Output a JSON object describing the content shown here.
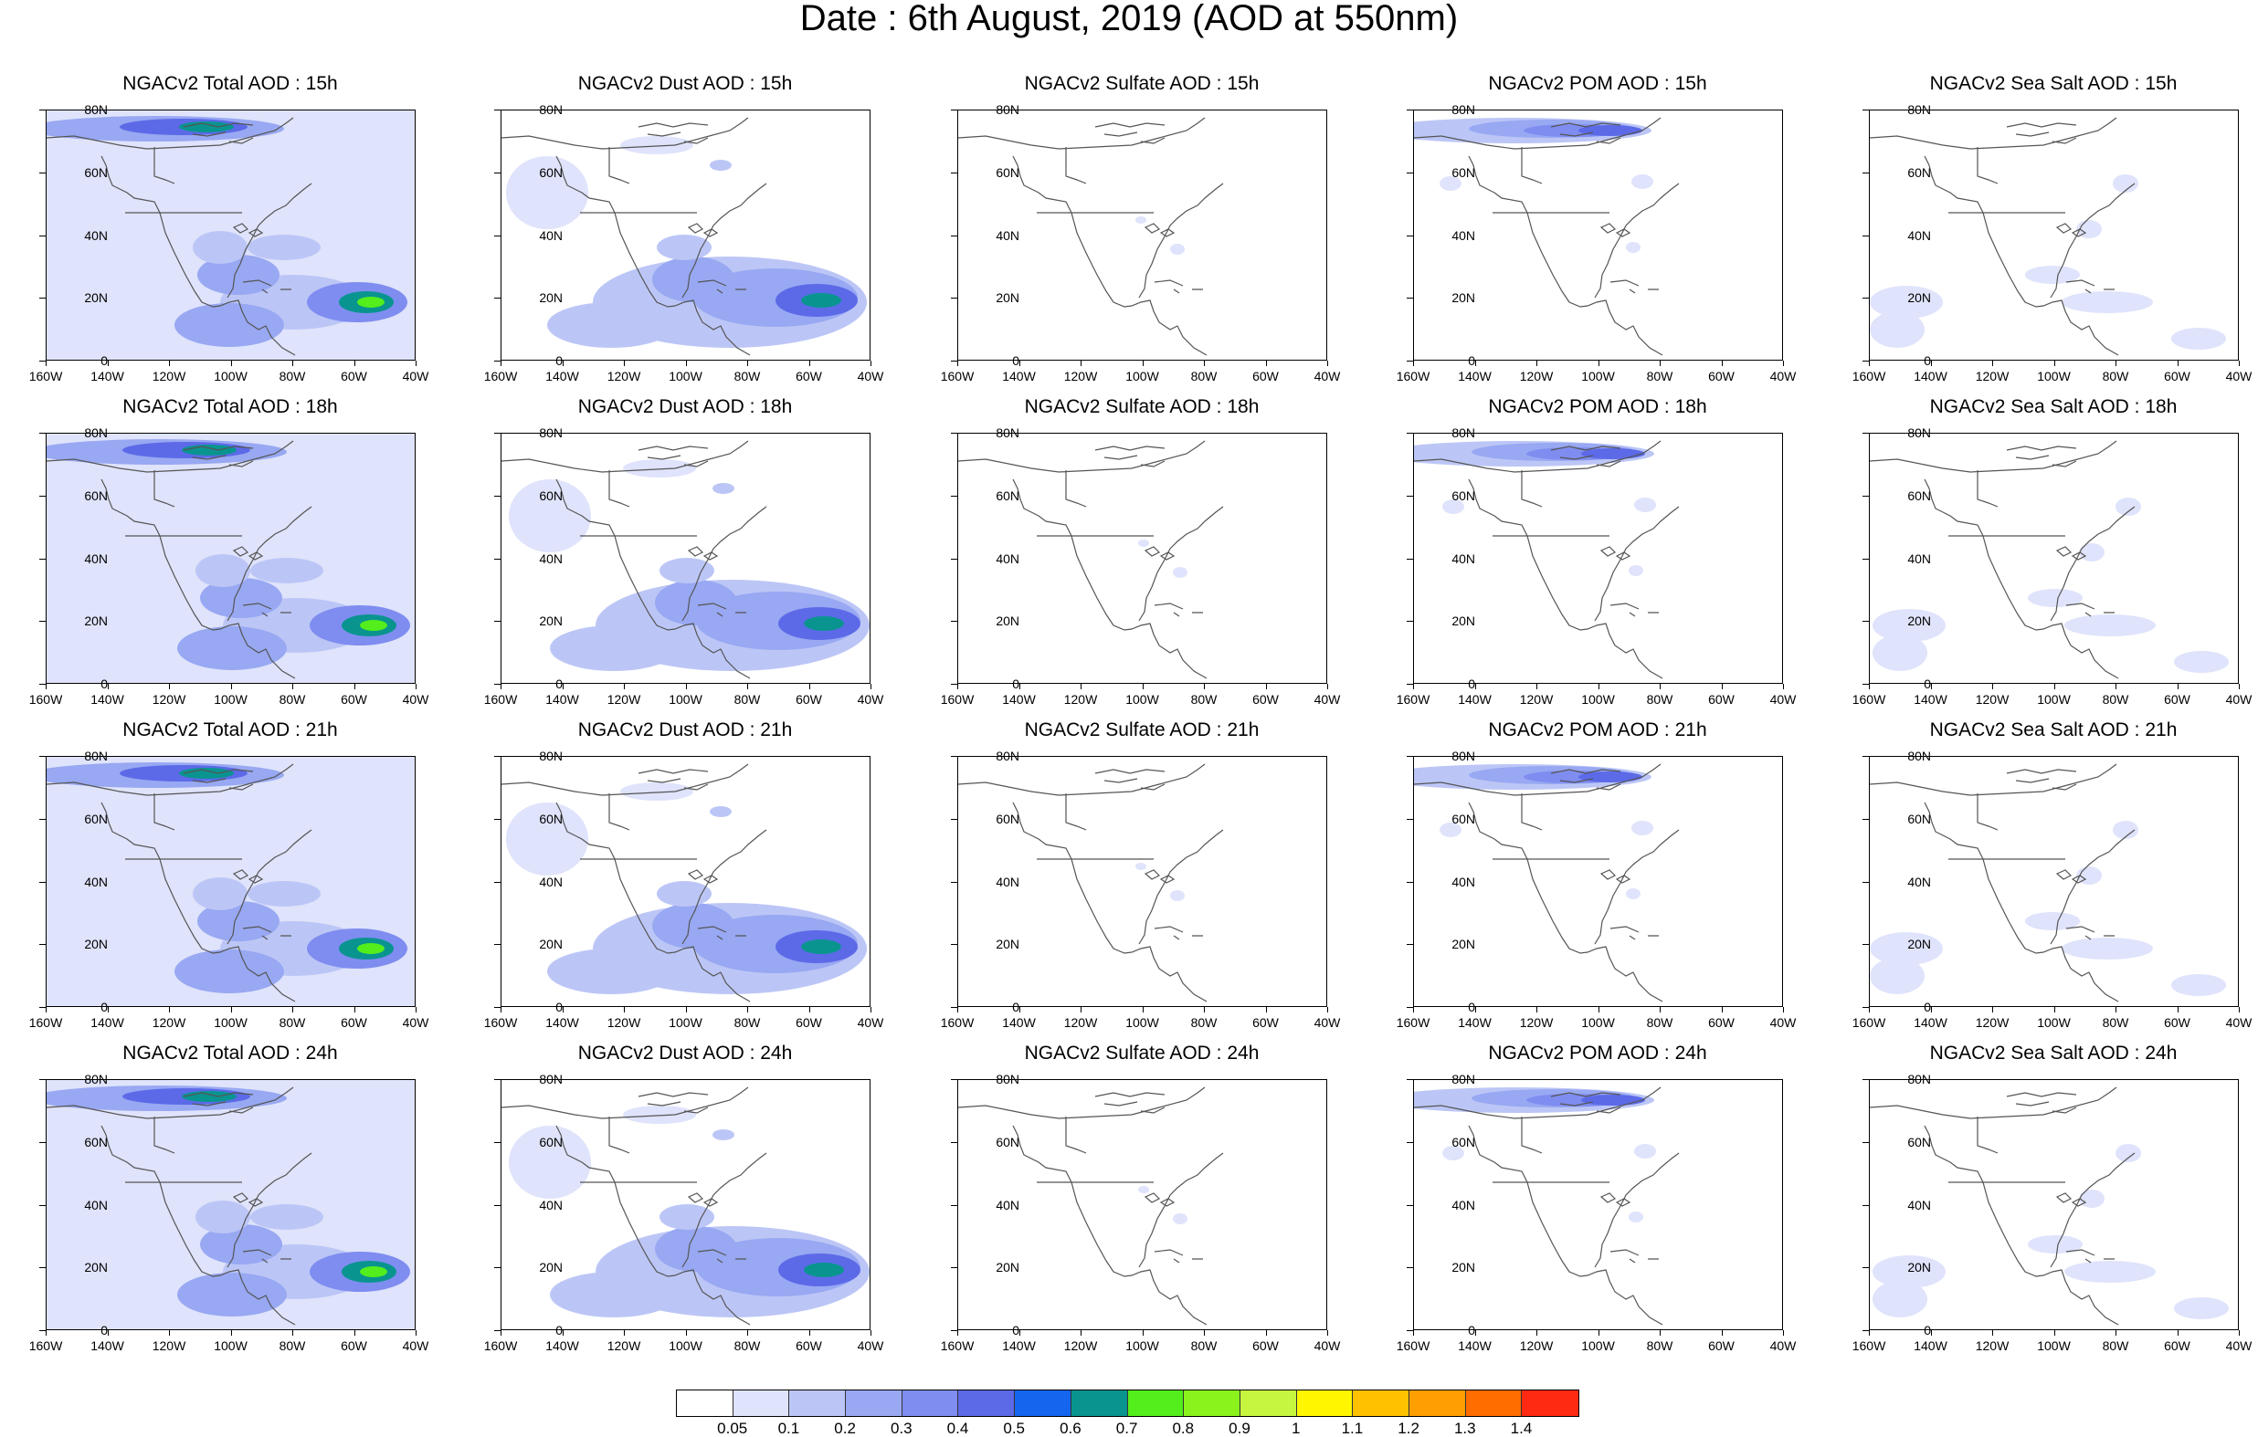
{
  "title": "Date : 6th August, 2019 (AOD at 550nm)",
  "axes": {
    "y_ticks": [
      "80N",
      "60N",
      "40N",
      "20N",
      "0"
    ],
    "x_ticks": [
      "160W",
      "140W",
      "120W",
      "100W",
      "80W",
      "60W",
      "40W"
    ]
  },
  "species": [
    "Total",
    "Dust",
    "Sulfate",
    "POM",
    "Sea Salt"
  ],
  "hours": [
    "15h",
    "18h",
    "21h",
    "24h"
  ],
  "panel_titles": [
    [
      "NGACv2 Total AOD : 15h",
      "NGACv2 Dust AOD : 15h",
      "NGACv2 Sulfate AOD : 15h",
      "NGACv2 POM AOD : 15h",
      "NGACv2 Sea Salt AOD : 15h"
    ],
    [
      "NGACv2 Total AOD : 18h",
      "NGACv2 Dust AOD : 18h",
      "NGACv2 Sulfate AOD : 18h",
      "NGACv2 POM AOD : 18h",
      "NGACv2 Sea Salt AOD : 18h"
    ],
    [
      "NGACv2 Total AOD : 21h",
      "NGACv2 Dust AOD : 21h",
      "NGACv2 Sulfate AOD : 21h",
      "NGACv2 POM AOD : 21h",
      "NGACv2 Sea Salt AOD : 21h"
    ],
    [
      "NGACv2 Total AOD : 24h",
      "NGACv2 Dust AOD : 24h",
      "NGACv2 Sulfate AOD : 24h",
      "NGACv2 POM AOD : 24h",
      "NGACv2 Sea Salt  AOD : 24h"
    ]
  ],
  "colorbar": {
    "labels": [
      "0.05",
      "0.1",
      "0.2",
      "0.3",
      "0.4",
      "0.5",
      "0.6",
      "0.7",
      "0.8",
      "0.9",
      "1",
      "1.1",
      "1.2",
      "1.3",
      "1.4"
    ],
    "colors": [
      "#ffffff",
      "#dfe3fb",
      "#bcc6f6",
      "#98a8f2",
      "#7f8df0",
      "#5c6ae8",
      "#1565ee",
      "#0a9490",
      "#53ee1c",
      "#8af31c",
      "#c6f63f",
      "#fff600",
      "#ffc100",
      "#ff9e00",
      "#ff6c00",
      "#ff2a12"
    ]
  },
  "colors": {
    "land_outline": "#555555",
    "total_background": "#dfe3fb"
  }
}
